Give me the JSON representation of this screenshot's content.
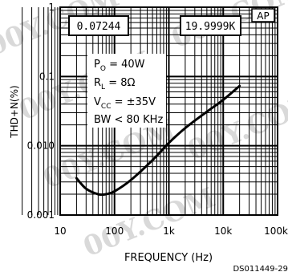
{
  "chart_data": {
    "type": "line",
    "title": "",
    "xlabel": "FREQUENCY (Hz)",
    "ylabel": "THD+N(%)",
    "x_scale": "log",
    "y_scale": "log",
    "xlim": [
      10,
      100000
    ],
    "ylim": [
      0.001,
      1
    ],
    "x_ticks": [
      "10",
      "100",
      "1k",
      "10k",
      "100k"
    ],
    "y_ticks": [
      "0.001",
      "0.010",
      "0.1",
      "1"
    ],
    "grid": true,
    "series": [
      {
        "x": [
          20,
          30,
          50,
          70,
          100,
          200,
          500,
          1000,
          2000,
          5000,
          10000,
          20000
        ],
        "y": [
          0.0034,
          0.0024,
          0.002,
          0.002,
          0.0022,
          0.0032,
          0.0062,
          0.011,
          0.018,
          0.031,
          0.046,
          0.073
        ]
      }
    ],
    "readouts": {
      "left": "0.07244",
      "right": "19.9999K",
      "badge": "AP"
    },
    "conditions": [
      "P_O = 40W",
      "R_L = 8Ω",
      "V_CC = ±35V",
      "BW < 80 KHz"
    ],
    "footer_code": "DS011449-29",
    "watermark": "00Y.COM"
  }
}
